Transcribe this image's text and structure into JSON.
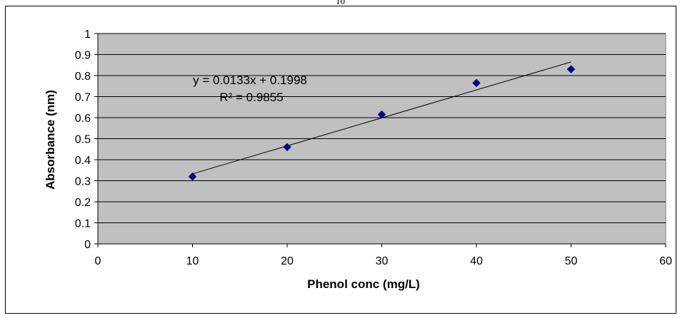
{
  "page_number": "10",
  "chart_data": {
    "type": "scatter",
    "xlabel": "Phenol conc (mg/L)",
    "ylabel": "Absorbance (nm)",
    "xlim": [
      0,
      60
    ],
    "ylim": [
      0,
      1
    ],
    "x_ticks": [
      "0",
      "10",
      "20",
      "30",
      "40",
      "50",
      "60"
    ],
    "y_ticks": [
      "0",
      "0.1",
      "0.2",
      "0.3",
      "0.4",
      "0.5",
      "0.6",
      "0.7",
      "0.8",
      "0.9",
      "1"
    ],
    "grid": "horizontal",
    "plot_background": "#c0c0c0",
    "marker_color": "#000080",
    "series": [
      {
        "x": [
          10,
          20,
          30,
          40,
          50
        ],
        "y": [
          0.32,
          0.46,
          0.615,
          0.765,
          0.83
        ]
      }
    ],
    "trendline": {
      "type": "linear",
      "slope": 0.0133,
      "intercept": 0.1998,
      "x_range": [
        10,
        50
      ]
    },
    "annotations": {
      "equation": "y = 0.0133x + 0.1998",
      "r_squared": "R² = 0.9855"
    }
  }
}
